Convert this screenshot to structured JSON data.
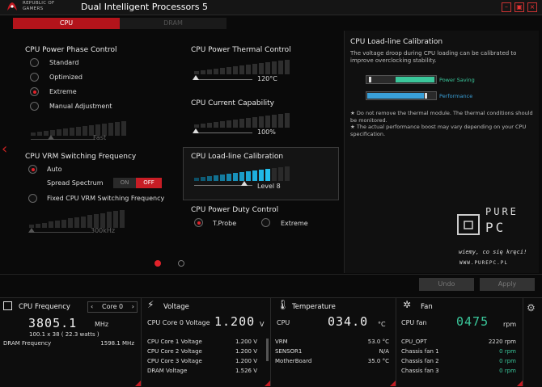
{
  "titlebar": {
    "brand_line1": "REPUBLIC OF",
    "brand_line2": "GAMERS",
    "title": "Dual Intelligent Processors 5",
    "close_glyph": "×"
  },
  "tabs": [
    {
      "label": "CPU",
      "active": true
    },
    {
      "label": "DRAM",
      "active": false
    }
  ],
  "phase_control": {
    "title": "CPU Power Phase Control",
    "options": [
      "Standard",
      "Optimized",
      "Extreme",
      "Manual Adjustment"
    ],
    "selected": "Extreme",
    "slider_value": "Fast"
  },
  "vrm": {
    "title": "CPU VRM Switching Frequency",
    "auto_label": "Auto",
    "spread_label": "Spread Spectrum",
    "toggle_on": "ON",
    "toggle_off": "OFF",
    "fixed_label": "Fixed CPU VRM Switching Frequency",
    "slider_value": "300kHz"
  },
  "thermal": {
    "title": "CPU Power Thermal Control",
    "value": "120°C"
  },
  "current": {
    "title": "CPU Current Capability",
    "value": "100%"
  },
  "llc": {
    "title": "CPU Load-line Calibration",
    "value": "Level 8"
  },
  "duty": {
    "title": "CPU Power Duty Control",
    "opt1": "T.Probe",
    "opt2": "Extreme",
    "selected": "T.Probe"
  },
  "info_panel": {
    "title": "CPU Load-line Calibration",
    "description": "The voltage droop during CPU loading can be calibrated to improve overclocking stability.",
    "bar1_label": "Power Saving",
    "bar2_label": "Performance",
    "note1": "Do not remove the thermal module. The thermal conditions should be monitored.",
    "note2": "The actual performance boost may vary depending on your CPU specification.",
    "colors": {
      "green": "#3ac79b",
      "blue": "#3aa0d8",
      "accent": "#c81d25"
    }
  },
  "actions": {
    "undo": "Undo",
    "apply": "Apply"
  },
  "bottom": {
    "cpu_freq": {
      "title": "CPU Frequency",
      "core_select": "Core 0",
      "value": "3805.1",
      "unit": "MHz",
      "ratio_line": "100.1  x 38  ( 22.3    watts )",
      "dram_label": "DRAM Frequency",
      "dram_value": "1598.1  MHz"
    },
    "voltage": {
      "title": "Voltage",
      "main_label": "CPU Core 0 Voltage",
      "main_value": "1.200",
      "main_unit": "V",
      "rows": [
        {
          "label": "CPU Core 1 Voltage",
          "value": "1.200  V"
        },
        {
          "label": "CPU Core 2 Voltage",
          "value": "1.200  V"
        },
        {
          "label": "CPU Core 3 Voltage",
          "value": "1.200  V"
        },
        {
          "label": "DRAM Voltage",
          "value": "1.526  V"
        }
      ]
    },
    "temperature": {
      "title": "Temperature",
      "main_label": "CPU",
      "main_value": "034.0",
      "main_unit": "°C",
      "rows": [
        {
          "label": "VRM",
          "value": "53.0 °C"
        },
        {
          "label": "SENSOR1",
          "value": "N/A"
        },
        {
          "label": "MotherBoard",
          "value": "35.0 °C"
        }
      ]
    },
    "fan": {
      "title": "Fan",
      "main_label": "CPU fan",
      "main_value": "0475",
      "main_unit": "rpm",
      "rows": [
        {
          "label": "CPU_OPT",
          "value": "2220  rpm"
        },
        {
          "label": "Chassis fan 1",
          "value": "0  rpm"
        },
        {
          "label": "Chassis fan 2",
          "value": "0  rpm"
        },
        {
          "label": "Chassis fan 3",
          "value": "0  rpm"
        }
      ]
    }
  },
  "watermark": {
    "line1": "PURE",
    "line2": "PC",
    "tagline": "wiemy, co się kręci!",
    "url": "WWW.PUREPC.PL"
  }
}
